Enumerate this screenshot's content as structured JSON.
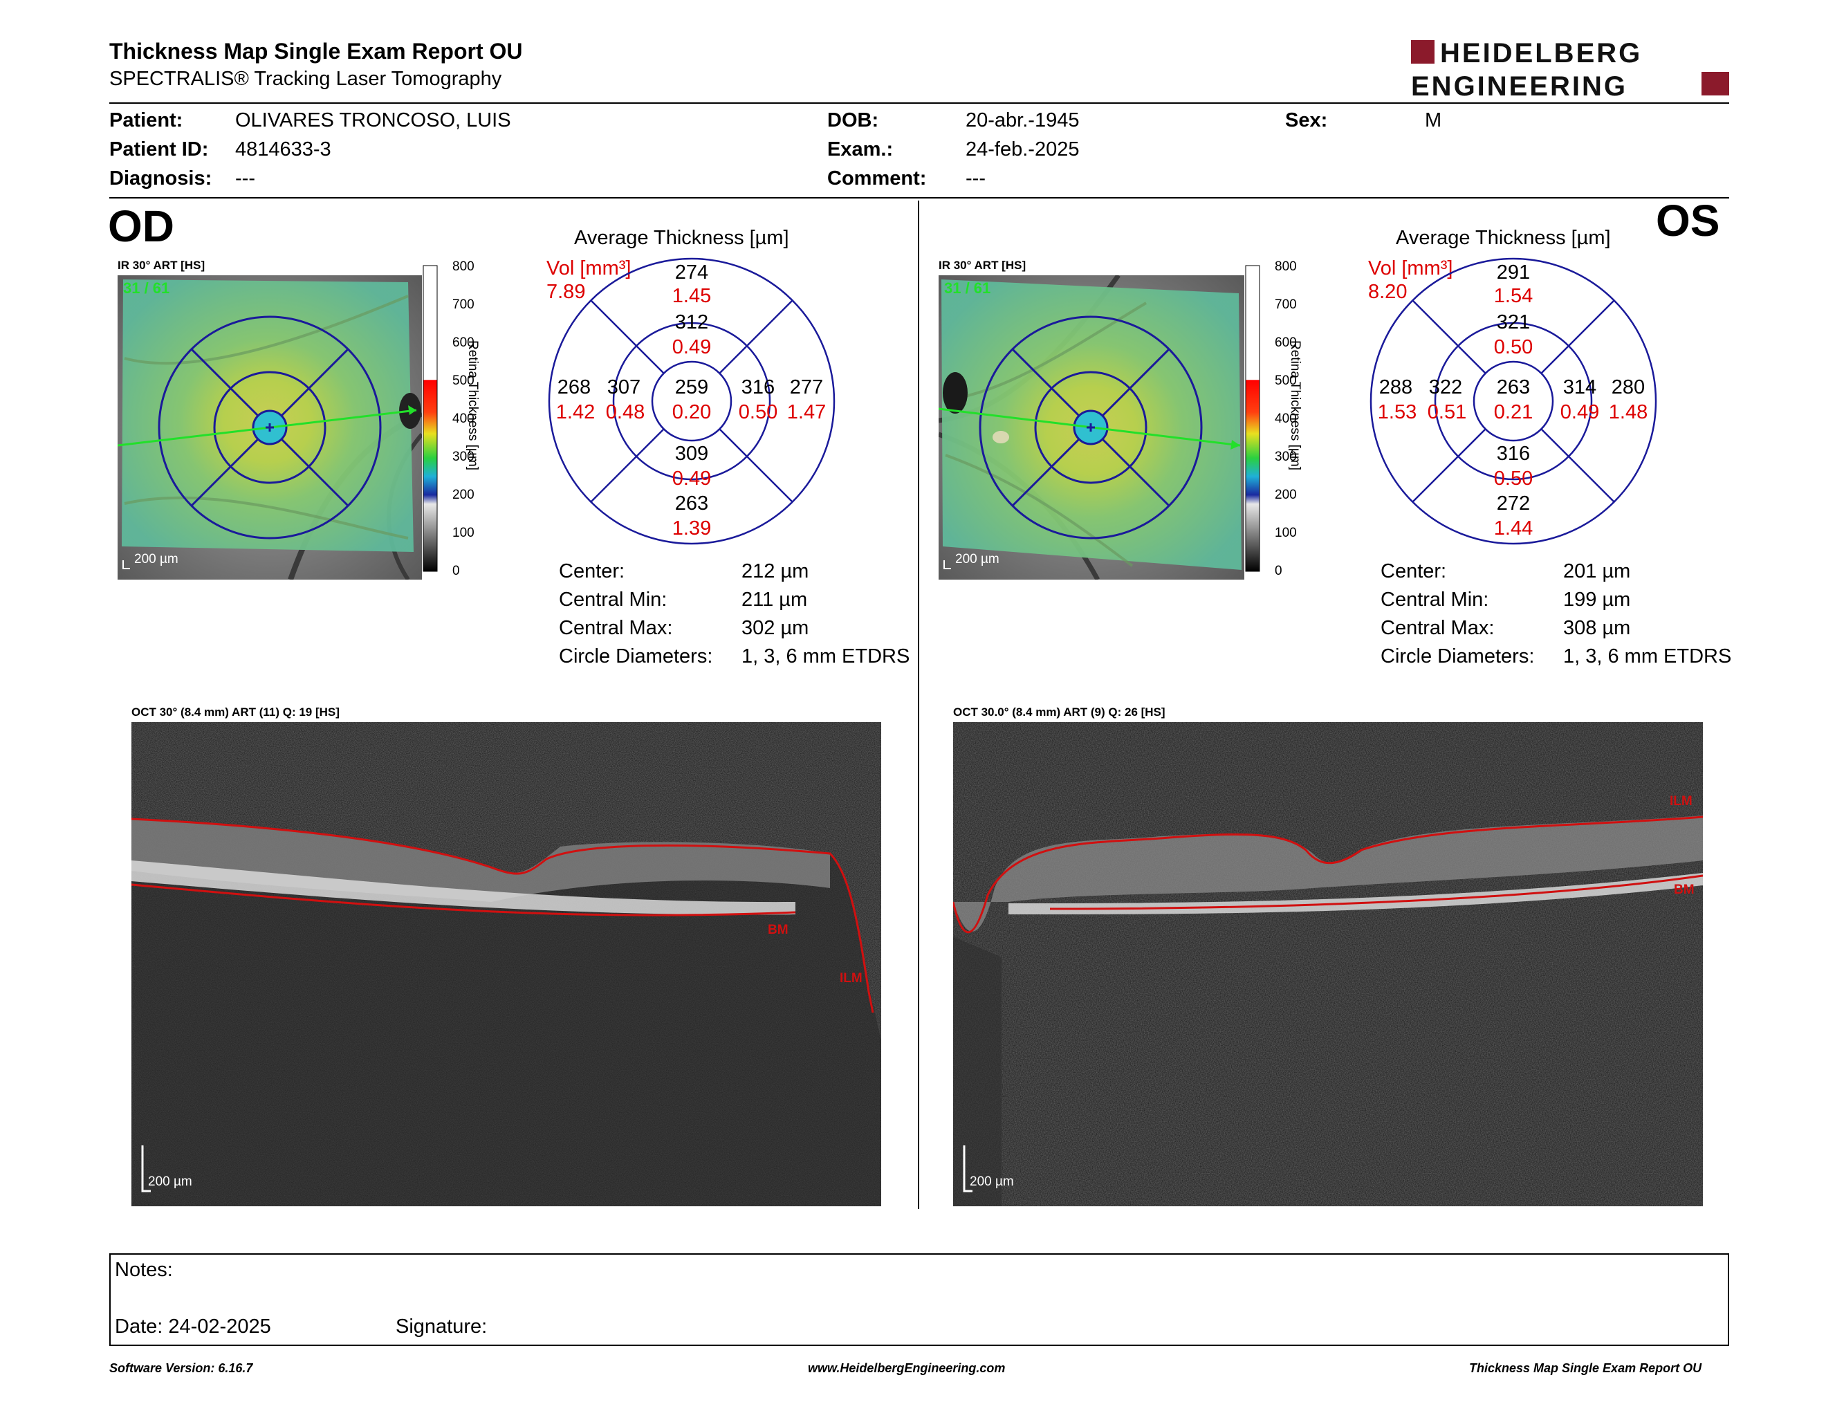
{
  "header": {
    "title": "Thickness Map Single Exam Report OU",
    "subtitle": "SPECTRALIS® Tracking Laser Tomography",
    "logo_line1": "HEIDELBERG",
    "logo_line2": "ENGINEERING"
  },
  "patient": {
    "patient_label": "Patient:",
    "patient_value": "OLIVARES TRONCOSO, LUIS",
    "id_label": "Patient ID:",
    "id_value": "4814633-3",
    "diagnosis_label": "Diagnosis:",
    "diagnosis_value": "---",
    "dob_label": "DOB:",
    "dob_value": "20-abr.-1945",
    "exam_label": "Exam.:",
    "exam_value": "24-feb.-2025",
    "comment_label": "Comment:",
    "comment_value": "---",
    "sex_label": "Sex:",
    "sex_value": "M"
  },
  "colors": {
    "accent": "#8b1a2b",
    "volume_red": "#dd0000",
    "grid_blue": "#1a1a9a"
  },
  "scale": {
    "title": "Retina Thickness [µm]",
    "ticks": [
      "800",
      "700",
      "600",
      "500",
      "400",
      "300",
      "200",
      "100",
      "0"
    ]
  },
  "od": {
    "eye_label": "OD",
    "ir_caption": "IR 30° ART [HS]",
    "frame_counter": "31 / 61",
    "scale_bar": "200 µm",
    "avg_title": "Average Thickness [µm]",
    "vol_label": "Vol [mm³]",
    "vol_total": "7.89",
    "sectors": {
      "outer_top": {
        "t": "274",
        "v": "1.45"
      },
      "inner_top": {
        "t": "312",
        "v": "0.49"
      },
      "outer_left": {
        "t": "268",
        "v": "1.42"
      },
      "inner_left": {
        "t": "307",
        "v": "0.48"
      },
      "center": {
        "t": "259",
        "v": "0.20"
      },
      "inner_right": {
        "t": "316",
        "v": "0.50"
      },
      "outer_right": {
        "t": "277",
        "v": "1.47"
      },
      "inner_bottom": {
        "t": "309",
        "v": "0.49"
      },
      "outer_bottom": {
        "t": "263",
        "v": "1.39"
      }
    },
    "stats": {
      "center_label": "Center:",
      "center_value": "212 µm",
      "min_label": "Central Min:",
      "min_value": "211 µm",
      "max_label": "Central Max:",
      "max_value": "302 µm",
      "diam_label": "Circle Diameters:",
      "diam_value": "1, 3, 6 mm ETDRS"
    },
    "oct_caption": "OCT 30° (8.4 mm) ART (11) Q: 19 [HS]",
    "oct_scale": "200 µm",
    "bm_label": "BM",
    "ilm_label": "ILM"
  },
  "os": {
    "eye_label": "OS",
    "ir_caption": "IR 30° ART [HS]",
    "frame_counter": "31 / 61",
    "scale_bar": "200 µm",
    "avg_title": "Average Thickness [µm]",
    "vol_label": "Vol [mm³]",
    "vol_total": "8.20",
    "sectors": {
      "outer_top": {
        "t": "291",
        "v": "1.54"
      },
      "inner_top": {
        "t": "321",
        "v": "0.50"
      },
      "outer_left": {
        "t": "288",
        "v": "1.53"
      },
      "inner_left": {
        "t": "322",
        "v": "0.51"
      },
      "center": {
        "t": "263",
        "v": "0.21"
      },
      "inner_right": {
        "t": "314",
        "v": "0.49"
      },
      "outer_right": {
        "t": "280",
        "v": "1.48"
      },
      "inner_bottom": {
        "t": "316",
        "v": "0.50"
      },
      "outer_bottom": {
        "t": "272",
        "v": "1.44"
      }
    },
    "stats": {
      "center_label": "Center:",
      "center_value": "201 µm",
      "min_label": "Central Min:",
      "min_value": "199 µm",
      "max_label": "Central Max:",
      "max_value": "308 µm",
      "diam_label": "Circle Diameters:",
      "diam_value": "1, 3, 6 mm ETDRS"
    },
    "oct_caption": "OCT 30.0° (8.4 mm) ART (9) Q: 26 [HS]",
    "oct_scale": "200 µm",
    "bm_label": "BM",
    "ilm_label": "ILM"
  },
  "notes": {
    "notes_label": "Notes:",
    "date_label": "Date: 24-02-2025",
    "signature_label": "Signature:"
  },
  "footer": {
    "software": "Software Version: 6.16.7",
    "website": "www.HeidelbergEngineering.com",
    "report": "Thickness Map Single Exam Report OU"
  }
}
